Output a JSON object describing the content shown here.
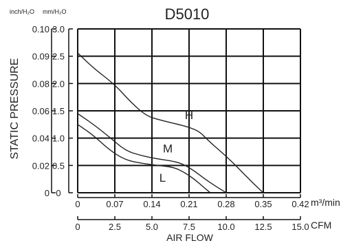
{
  "chart_data": {
    "type": "line",
    "title": "D5010",
    "ylabel": "STATIC PRESSURE",
    "xlabel": "AIR FLOW",
    "y_units_inner": "mm/H₂O",
    "y_units_outer": "inch/H₂O",
    "x_units_top": "m³/min",
    "x_units_bottom": "CFM",
    "xlim": [
      0,
      0.42
    ],
    "ylim": [
      0,
      3.0
    ],
    "grid": true,
    "x_ticks_m3min": [
      "0",
      "0.07",
      "0.14",
      "0.21",
      "0.28",
      "0.35",
      "0.42"
    ],
    "x_ticks_cfm": [
      "0",
      "2.5",
      "5.0",
      "7.5",
      "10.0",
      "12.5",
      "15.0"
    ],
    "y_ticks_mm": [
      "0",
      "0.5",
      "1.0",
      "1.5",
      "2.0",
      "2.5",
      "3.0"
    ],
    "y_ticks_inch": [
      "0",
      "0.02",
      "0.04",
      "0.06",
      "0.08",
      "0.09",
      "0.10"
    ],
    "series": [
      {
        "name": "H",
        "x": [
          0,
          0.03,
          0.07,
          0.1,
          0.13,
          0.16,
          0.19,
          0.21,
          0.23,
          0.25,
          0.28,
          0.31,
          0.33,
          0.35
        ],
        "y": [
          2.56,
          2.28,
          1.98,
          1.66,
          1.4,
          1.32,
          1.25,
          1.2,
          1.12,
          0.92,
          0.67,
          0.38,
          0.18,
          0.0
        ]
      },
      {
        "name": "M",
        "x": [
          0,
          0.03,
          0.06,
          0.09,
          0.12,
          0.15,
          0.18,
          0.2,
          0.22,
          0.24,
          0.26,
          0.28
        ],
        "y": [
          1.45,
          1.25,
          1.02,
          0.77,
          0.68,
          0.62,
          0.58,
          0.52,
          0.4,
          0.25,
          0.12,
          0.0
        ]
      },
      {
        "name": "L",
        "x": [
          0,
          0.03,
          0.06,
          0.09,
          0.12,
          0.15,
          0.18,
          0.2,
          0.22,
          0.24,
          0.25
        ],
        "y": [
          1.25,
          1.05,
          0.78,
          0.6,
          0.54,
          0.5,
          0.47,
          0.38,
          0.25,
          0.08,
          0.0
        ]
      }
    ]
  }
}
